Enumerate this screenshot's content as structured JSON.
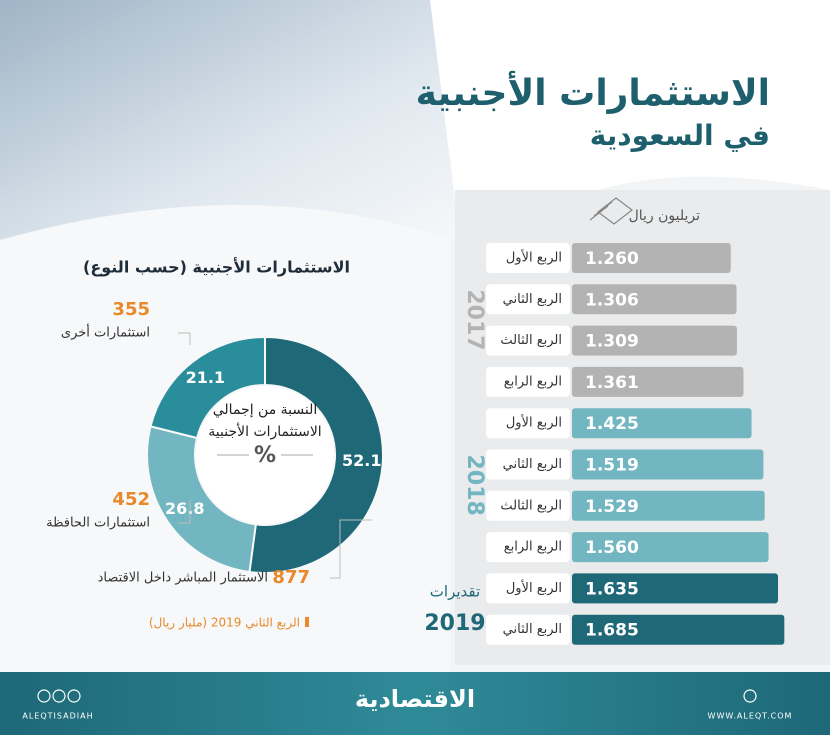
{
  "header": {
    "title": "الاستثمارات الأجنبية",
    "subtitle": "في السعودية"
  },
  "chart_data": [
    {
      "type": "bar",
      "orientation": "horizontal",
      "unit": "تريليون ريال",
      "series": [
        {
          "name": "2017",
          "color": "#b3b3b3",
          "categories": [
            "الربع الأول",
            "الربع الثاني",
            "الربع الثالث",
            "الربع الرابع"
          ],
          "values": [
            1.26,
            1.306,
            1.309,
            1.361
          ],
          "value_labels": [
            "1.260",
            "1.306",
            "1.309",
            "1.361"
          ]
        },
        {
          "name": "2018",
          "color": "#72b6c1",
          "categories": [
            "الربع الأول",
            "الربع الثاني",
            "الربع الثالث",
            "الربع الرابع"
          ],
          "values": [
            1.425,
            1.519,
            1.529,
            1.56
          ],
          "value_labels": [
            "1.425",
            "1.519",
            "1.529",
            "1.560"
          ]
        },
        {
          "name": "2019",
          "note": "تقديرات",
          "color": "#1e6878",
          "categories": [
            "الربع الأول",
            "الربع الثاني"
          ],
          "values": [
            1.635,
            1.685
          ],
          "value_labels": [
            "1.635",
            "1.685"
          ]
        }
      ]
    },
    {
      "type": "donut",
      "title": "الاستثمارات الأجنبية (حسب النوع)",
      "center_label": [
        "النسبة من إجمالي",
        "الاستثمارات الأجنبية"
      ],
      "center_unit": "%",
      "note": "الربع الثاني 2019 (مليار ريال)",
      "categories": [
        "الاستثمار المباشر داخل الاقتصاد",
        "استثمارات الحافظة",
        "استثمارات أخرى"
      ],
      "values": [
        52.1,
        26.8,
        21.1
      ],
      "amounts": [
        877,
        452,
        355
      ],
      "colors": [
        "#1e6878",
        "#72b6c1",
        "#2a8d9c"
      ]
    }
  ],
  "footer": {
    "brand": "الاقتصادية",
    "handle": "ALEQTISADIAH",
    "website": "WWW.ALEQT.COM"
  }
}
